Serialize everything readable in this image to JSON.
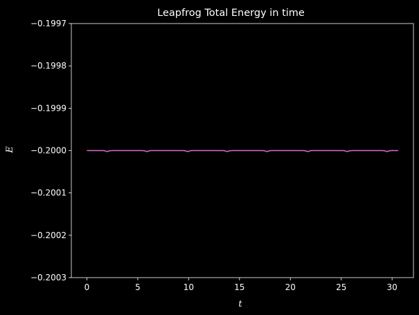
{
  "chart_data": {
    "type": "line",
    "title": "Leapfrog Total Energy in time",
    "xlabel": "t",
    "ylabel": "E",
    "xlim": [
      -1.53,
      32.1
    ],
    "ylim": [
      -0.2003,
      -0.1997
    ],
    "xticks": [
      0,
      5,
      10,
      15,
      20,
      25,
      30
    ],
    "xtick_labels": [
      "0",
      "5",
      "10",
      "15",
      "20",
      "25",
      "30"
    ],
    "yticks": [
      -0.2003,
      -0.2002,
      -0.2001,
      -0.2,
      -0.1999,
      -0.1998,
      -0.1997
    ],
    "ytick_labels": [
      "−0.2003",
      "−0.2002",
      "−0.2001",
      "−0.2000",
      "−0.1999",
      "−0.1998",
      "−0.1997"
    ],
    "grid": false,
    "background": "#000000",
    "foreground": "#ffffff",
    "series": [
      {
        "color": "#da70d6",
        "x": [
          0,
          1.6,
          1.85,
          2.0,
          2.15,
          2.4,
          5.5,
          5.75,
          5.9,
          6.05,
          6.3,
          9.5,
          9.75,
          9.9,
          10.05,
          10.3,
          13.4,
          13.65,
          13.8,
          13.95,
          14.2,
          17.3,
          17.55,
          17.7,
          17.85,
          18.1,
          21.3,
          21.55,
          21.7,
          21.85,
          22.1,
          25.2,
          25.45,
          25.6,
          25.75,
          26.0,
          29.1,
          29.35,
          29.5,
          29.65,
          29.9,
          30.6
        ],
        "y": [
          -0.2,
          -0.2,
          -0.200001,
          -0.2000025,
          -0.200001,
          -0.2,
          -0.2,
          -0.200001,
          -0.2000025,
          -0.200001,
          -0.2,
          -0.2,
          -0.200001,
          -0.2000025,
          -0.200001,
          -0.2,
          -0.2,
          -0.200001,
          -0.2000025,
          -0.200001,
          -0.2,
          -0.2,
          -0.200001,
          -0.2000025,
          -0.200001,
          -0.2,
          -0.2,
          -0.200001,
          -0.2000025,
          -0.200001,
          -0.2,
          -0.2,
          -0.200001,
          -0.2000025,
          -0.200001,
          -0.2,
          -0.2,
          -0.200001,
          -0.2000025,
          -0.200001,
          -0.2,
          -0.2
        ]
      }
    ]
  }
}
